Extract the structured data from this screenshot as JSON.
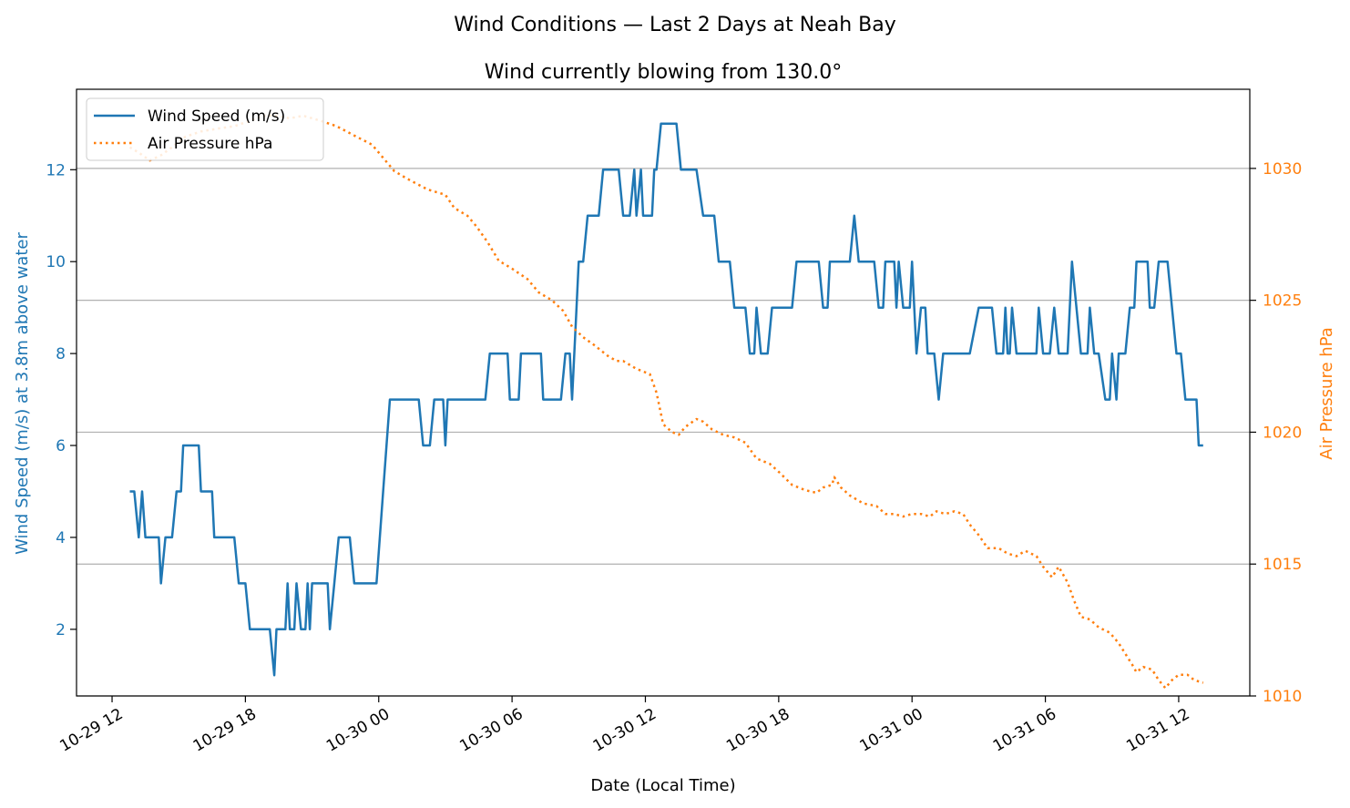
{
  "chart_data": {
    "type": "line",
    "title": "Wind Conditions — Last 2 Days at Neah Bay",
    "subtitle": "Wind currently blowing from 130.0°",
    "xlabel": "Date (Local Time)",
    "ylabel_left": "Wind Speed (m/s) at 3.8m above water",
    "ylabel_right": "Air Pressure hPa",
    "x_unit": "hours since 10-29 12:00 (tick labels show dates)",
    "xlim": [
      -1.6,
      51.2
    ],
    "ylim_left": [
      0.55,
      13.75
    ],
    "ylim_right": [
      1010.0,
      1033.0
    ],
    "x_ticks": [
      {
        "x": 0,
        "label": "10-29 12"
      },
      {
        "x": 6,
        "label": "10-29 18"
      },
      {
        "x": 12,
        "label": "10-30 00"
      },
      {
        "x": 18,
        "label": "10-30 06"
      },
      {
        "x": 24,
        "label": "10-30 12"
      },
      {
        "x": 30,
        "label": "10-30 18"
      },
      {
        "x": 36,
        "label": "10-31 00"
      },
      {
        "x": 42,
        "label": "10-31 06"
      },
      {
        "x": 48,
        "label": "10-31 12"
      }
    ],
    "y_ticks_left": [
      2,
      4,
      6,
      8,
      10,
      12
    ],
    "y_ticks_right": [
      1010,
      1015,
      1020,
      1025,
      1030
    ],
    "grid": "horizontal, right axis",
    "legend_position": "top-left",
    "colors": {
      "wind": "#1f77b4",
      "pressure": "#ff7f0e",
      "grid": "#b0b0b0"
    },
    "series": [
      {
        "name": "Wind Speed (m/s)",
        "axis": "left",
        "style": "solid",
        "points": [
          [
            0.8,
            5
          ],
          [
            1.0,
            5
          ],
          [
            1.2,
            4
          ],
          [
            1.35,
            5
          ],
          [
            1.5,
            4
          ],
          [
            1.7,
            4
          ],
          [
            2.0,
            4
          ],
          [
            2.1,
            4
          ],
          [
            2.2,
            3
          ],
          [
            2.4,
            4
          ],
          [
            2.7,
            4
          ],
          [
            2.9,
            5
          ],
          [
            3.1,
            5
          ],
          [
            3.2,
            6
          ],
          [
            3.6,
            6
          ],
          [
            3.9,
            6
          ],
          [
            4.0,
            5
          ],
          [
            4.3,
            5
          ],
          [
            4.5,
            5
          ],
          [
            4.6,
            4
          ],
          [
            5.1,
            4
          ],
          [
            5.5,
            4
          ],
          [
            5.7,
            3
          ],
          [
            6.0,
            3
          ],
          [
            6.2,
            2
          ],
          [
            6.8,
            2
          ],
          [
            7.1,
            2
          ],
          [
            7.3,
            1
          ],
          [
            7.4,
            2
          ],
          [
            7.8,
            2
          ],
          [
            7.9,
            3
          ],
          [
            8.0,
            2
          ],
          [
            8.2,
            2
          ],
          [
            8.3,
            3
          ],
          [
            8.5,
            2
          ],
          [
            8.7,
            2
          ],
          [
            8.8,
            3
          ],
          [
            8.9,
            2
          ],
          [
            9.0,
            3
          ],
          [
            9.7,
            3
          ],
          [
            9.8,
            2
          ],
          [
            10.0,
            3
          ],
          [
            10.2,
            4
          ],
          [
            10.7,
            4
          ],
          [
            10.9,
            3
          ],
          [
            11.9,
            3
          ],
          [
            12.2,
            5
          ],
          [
            12.5,
            7
          ],
          [
            13.2,
            7
          ],
          [
            13.8,
            7
          ],
          [
            14.0,
            6
          ],
          [
            14.3,
            6
          ],
          [
            14.5,
            7
          ],
          [
            14.9,
            7
          ],
          [
            15.0,
            6
          ],
          [
            15.1,
            7
          ],
          [
            16.8,
            7
          ],
          [
            17.0,
            8
          ],
          [
            17.8,
            8
          ],
          [
            17.9,
            7
          ],
          [
            18.3,
            7
          ],
          [
            18.4,
            8
          ],
          [
            19.3,
            8
          ],
          [
            19.4,
            7
          ],
          [
            20.2,
            7
          ],
          [
            20.4,
            8
          ],
          [
            20.6,
            8
          ],
          [
            20.7,
            7
          ],
          [
            20.9,
            9
          ],
          [
            21.0,
            10
          ],
          [
            21.2,
            10
          ],
          [
            21.4,
            11
          ],
          [
            21.9,
            11
          ],
          [
            22.1,
            12
          ],
          [
            22.8,
            12
          ],
          [
            23.0,
            11
          ],
          [
            23.3,
            11
          ],
          [
            23.5,
            12
          ],
          [
            23.6,
            11
          ],
          [
            23.8,
            12
          ],
          [
            23.9,
            11
          ],
          [
            24.3,
            11
          ],
          [
            24.4,
            12
          ],
          [
            24.5,
            12
          ],
          [
            24.7,
            13
          ],
          [
            25.4,
            13
          ],
          [
            25.6,
            12
          ],
          [
            26.3,
            12
          ],
          [
            26.6,
            11
          ],
          [
            27.1,
            11
          ],
          [
            27.3,
            10
          ],
          [
            27.8,
            10
          ],
          [
            28.0,
            9
          ],
          [
            28.5,
            9
          ],
          [
            28.7,
            8
          ],
          [
            28.9,
            8
          ],
          [
            29.0,
            9
          ],
          [
            29.2,
            8
          ],
          [
            29.5,
            8
          ],
          [
            29.7,
            9
          ],
          [
            30.6,
            9
          ],
          [
            30.8,
            10
          ],
          [
            31.8,
            10
          ],
          [
            32.0,
            9
          ],
          [
            32.2,
            9
          ],
          [
            32.3,
            10
          ],
          [
            33.2,
            10
          ],
          [
            33.4,
            11
          ],
          [
            33.6,
            10
          ],
          [
            34.3,
            10
          ],
          [
            34.5,
            9
          ],
          [
            34.7,
            9
          ],
          [
            34.8,
            10
          ],
          [
            35.2,
            10
          ],
          [
            35.3,
            9
          ],
          [
            35.4,
            10
          ],
          [
            35.6,
            9
          ],
          [
            35.9,
            9
          ],
          [
            36.0,
            10
          ],
          [
            36.2,
            8
          ],
          [
            36.4,
            9
          ],
          [
            36.6,
            9
          ],
          [
            36.7,
            8
          ],
          [
            37.0,
            8
          ],
          [
            37.2,
            7
          ],
          [
            37.4,
            8
          ],
          [
            38.0,
            8
          ],
          [
            38.6,
            8
          ],
          [
            39.0,
            9
          ],
          [
            39.6,
            9
          ],
          [
            39.8,
            8
          ],
          [
            40.1,
            8
          ],
          [
            40.2,
            9
          ],
          [
            40.3,
            8
          ],
          [
            40.4,
            8
          ],
          [
            40.5,
            9
          ],
          [
            40.7,
            8
          ],
          [
            41.6,
            8
          ],
          [
            41.7,
            9
          ],
          [
            41.9,
            8
          ],
          [
            42.2,
            8
          ],
          [
            42.4,
            9
          ],
          [
            42.6,
            8
          ],
          [
            43.0,
            8
          ],
          [
            43.2,
            10
          ],
          [
            43.6,
            8
          ],
          [
            43.9,
            8
          ],
          [
            44.0,
            9
          ],
          [
            44.2,
            8
          ],
          [
            44.4,
            8
          ],
          [
            44.7,
            7
          ],
          [
            44.9,
            7
          ],
          [
            45.0,
            8
          ],
          [
            45.2,
            7
          ],
          [
            45.3,
            8
          ],
          [
            45.6,
            8
          ],
          [
            45.8,
            9
          ],
          [
            46.0,
            9
          ],
          [
            46.1,
            10
          ],
          [
            46.6,
            10
          ],
          [
            46.7,
            9
          ],
          [
            46.9,
            9
          ],
          [
            47.1,
            10
          ],
          [
            47.5,
            10
          ],
          [
            47.7,
            9
          ],
          [
            47.9,
            8
          ],
          [
            48.1,
            8
          ],
          [
            48.3,
            7
          ],
          [
            48.8,
            7
          ],
          [
            48.9,
            6
          ],
          [
            49.1,
            6
          ]
        ]
      },
      {
        "name": "Air Pressure hPa",
        "axis": "right",
        "style": "dotted",
        "points": [
          [
            0.8,
            1030.8
          ],
          [
            1.2,
            1030.6
          ],
          [
            1.7,
            1030.3
          ],
          [
            2.2,
            1030.5
          ],
          [
            2.7,
            1030.8
          ],
          [
            3.3,
            1031.2
          ],
          [
            4.0,
            1031.4
          ],
          [
            4.7,
            1031.5
          ],
          [
            5.5,
            1031.6
          ],
          [
            6.2,
            1031.8
          ],
          [
            6.8,
            1032.0
          ],
          [
            7.4,
            1032.0
          ],
          [
            8.0,
            1031.9
          ],
          [
            8.6,
            1032.0
          ],
          [
            9.4,
            1031.8
          ],
          [
            10.1,
            1031.6
          ],
          [
            11.0,
            1031.2
          ],
          [
            11.7,
            1030.9
          ],
          [
            12.3,
            1030.3
          ],
          [
            12.7,
            1029.9
          ],
          [
            13.3,
            1029.6
          ],
          [
            14.2,
            1029.2
          ],
          [
            15.0,
            1029.0
          ],
          [
            15.4,
            1028.5
          ],
          [
            16.0,
            1028.2
          ],
          [
            16.4,
            1027.8
          ],
          [
            16.9,
            1027.2
          ],
          [
            17.4,
            1026.5
          ],
          [
            18.0,
            1026.2
          ],
          [
            18.7,
            1025.8
          ],
          [
            19.2,
            1025.3
          ],
          [
            19.8,
            1025.0
          ],
          [
            20.3,
            1024.6
          ],
          [
            20.7,
            1024.0
          ],
          [
            21.2,
            1023.6
          ],
          [
            21.7,
            1023.3
          ],
          [
            22.3,
            1022.9
          ],
          [
            22.7,
            1022.7
          ],
          [
            23.0,
            1022.7
          ],
          [
            23.6,
            1022.4
          ],
          [
            23.9,
            1022.3
          ],
          [
            24.2,
            1022.2
          ],
          [
            24.5,
            1021.5
          ],
          [
            24.8,
            1020.3
          ],
          [
            25.2,
            1020.0
          ],
          [
            25.5,
            1019.9
          ],
          [
            25.8,
            1020.2
          ],
          [
            26.3,
            1020.5
          ],
          [
            26.6,
            1020.4
          ],
          [
            27.0,
            1020.1
          ],
          [
            27.5,
            1019.9
          ],
          [
            28.0,
            1019.8
          ],
          [
            28.5,
            1019.6
          ],
          [
            29.0,
            1019.0
          ],
          [
            29.6,
            1018.8
          ],
          [
            30.0,
            1018.5
          ],
          [
            30.6,
            1018.0
          ],
          [
            31.2,
            1017.8
          ],
          [
            31.7,
            1017.7
          ],
          [
            32.0,
            1017.9
          ],
          [
            32.4,
            1018.0
          ],
          [
            32.5,
            1018.3
          ],
          [
            32.8,
            1017.9
          ],
          [
            33.2,
            1017.6
          ],
          [
            33.8,
            1017.3
          ],
          [
            34.4,
            1017.2
          ],
          [
            34.8,
            1016.9
          ],
          [
            35.2,
            1016.9
          ],
          [
            35.6,
            1016.8
          ],
          [
            36.0,
            1016.9
          ],
          [
            36.4,
            1016.9
          ],
          [
            36.8,
            1016.8
          ],
          [
            37.1,
            1017.0
          ],
          [
            37.5,
            1016.9
          ],
          [
            37.9,
            1017.0
          ],
          [
            38.3,
            1016.9
          ],
          [
            38.6,
            1016.5
          ],
          [
            39.0,
            1016.1
          ],
          [
            39.4,
            1015.6
          ],
          [
            39.9,
            1015.6
          ],
          [
            40.3,
            1015.4
          ],
          [
            40.7,
            1015.3
          ],
          [
            41.1,
            1015.5
          ],
          [
            41.6,
            1015.3
          ],
          [
            41.9,
            1014.9
          ],
          [
            42.3,
            1014.5
          ],
          [
            42.6,
            1014.9
          ],
          [
            43.0,
            1014.3
          ],
          [
            43.3,
            1013.6
          ],
          [
            43.6,
            1013.0
          ],
          [
            44.0,
            1012.9
          ],
          [
            44.4,
            1012.6
          ],
          [
            44.9,
            1012.4
          ],
          [
            45.3,
            1012.0
          ],
          [
            45.6,
            1011.6
          ],
          [
            45.9,
            1011.2
          ],
          [
            46.1,
            1010.9
          ],
          [
            46.4,
            1011.1
          ],
          [
            46.8,
            1011.0
          ],
          [
            47.1,
            1010.6
          ],
          [
            47.4,
            1010.3
          ],
          [
            47.7,
            1010.6
          ],
          [
            48.0,
            1010.8
          ],
          [
            48.4,
            1010.8
          ],
          [
            48.7,
            1010.6
          ],
          [
            49.1,
            1010.5
          ]
        ]
      }
    ]
  }
}
